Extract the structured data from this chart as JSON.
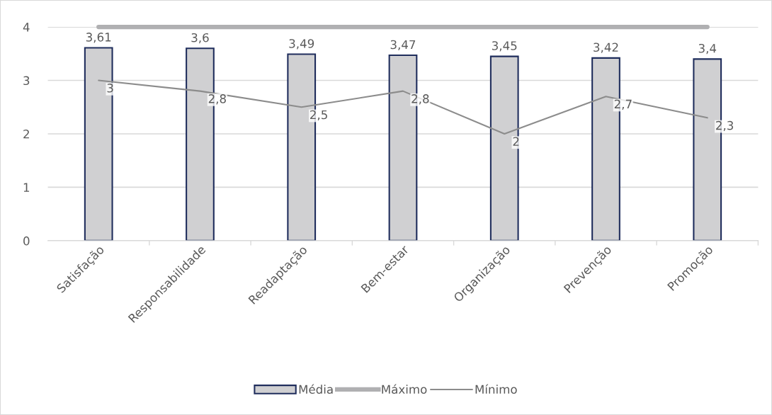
{
  "chart_data": {
    "type": "bar",
    "categories": [
      "Satisfação",
      "Responsabilidade",
      "Readaptação",
      "Bem-estar",
      "Organização",
      "Prevenção",
      "Promoção"
    ],
    "series": [
      {
        "name": "Média",
        "type": "bar",
        "color": "#d0d0d2",
        "values": [
          3.61,
          3.6,
          3.49,
          3.47,
          3.45,
          3.42,
          3.4
        ],
        "value_labels": [
          "3,61",
          "3,6",
          "3,49",
          "3,47",
          "3,45",
          "3,42",
          "3,4"
        ]
      },
      {
        "name": "Máximo",
        "type": "line",
        "color": "#b0b0b2",
        "values": [
          4,
          4,
          4,
          4,
          4,
          4,
          4
        ]
      },
      {
        "name": "Mínimo",
        "type": "line",
        "color": "#8c8c8c",
        "values": [
          3,
          2.8,
          2.5,
          2.8,
          2,
          2.7,
          2.3
        ],
        "value_labels": [
          "3",
          "2,8",
          "2,5",
          "2,8",
          "2",
          "2,7",
          "2,3"
        ]
      }
    ],
    "ylim": [
      0,
      4
    ],
    "yticks": [
      0,
      1,
      2,
      3,
      4
    ],
    "grid": "y",
    "legend": "bottom"
  }
}
